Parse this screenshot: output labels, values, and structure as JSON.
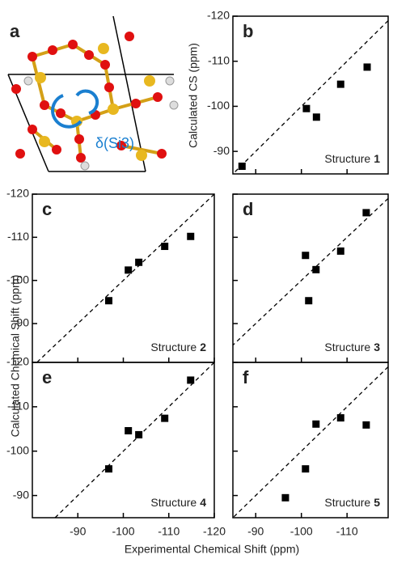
{
  "panel_a": {
    "label": "a",
    "annotation": "δ(Si3)"
  },
  "shared_labels": {
    "y": "Calculated Chemical Shift (ppm)",
    "x": "Experimental Chemical Shift (ppm)"
  },
  "chart_data": [
    {
      "type": "scatter",
      "label": "b",
      "ylabel": "Calculated CS (ppm)",
      "annotation": "Structure",
      "annotation_bold": "1",
      "x": [
        -87.0,
        -101.1,
        -103.3,
        -108.6,
        -114.4
      ],
      "y": [
        -86.7,
        -99.5,
        -97.6,
        -104.9,
        -108.7
      ],
      "color": "#000000",
      "marker": "square",
      "diagonal": true,
      "xlim": [
        -85,
        -119
      ],
      "ylim": [
        -85,
        -120
      ],
      "xticks": [
        -90,
        -100,
        -110
      ],
      "yticks": [
        -90,
        -100,
        -110,
        -120
      ],
      "xtick_labels": false,
      "ytick_labels": true
    },
    {
      "type": "scatter",
      "label": "c",
      "annotation": "Structure",
      "annotation_bold": "2",
      "x": [
        -96.8,
        -101.1,
        -103.4,
        -109.1,
        -114.8
      ],
      "y": [
        -95.3,
        -102.4,
        -104.2,
        -107.9,
        -110.2
      ],
      "color": "#000000",
      "marker": "square",
      "diagonal": true,
      "xlim": [
        -80,
        -120
      ],
      "ylim": [
        -81,
        -120
      ],
      "xticks": [
        -90,
        -100,
        -110,
        -120
      ],
      "yticks": [
        -90,
        -100,
        -110,
        -120
      ],
      "xtick_labels": false,
      "ytick_labels": true
    },
    {
      "type": "scatter",
      "label": "d",
      "annotation": "Structure",
      "annotation_bold": "3",
      "x": [
        -101.6,
        -100.9,
        -103.2,
        -108.6,
        -114.2
      ],
      "y": [
        -95.3,
        -105.8,
        -102.5,
        -106.8,
        -115.7
      ],
      "color": "#000000",
      "marker": "square",
      "diagonal": true,
      "xlim": [
        -85,
        -119
      ],
      "ylim": [
        -81,
        -120
      ],
      "xticks": [
        -90,
        -100,
        -110
      ],
      "yticks": [
        -90,
        -100,
        -110,
        -120
      ],
      "xtick_labels": false,
      "ytick_labels": false
    },
    {
      "type": "scatter",
      "label": "e",
      "annotation": "Structure",
      "annotation_bold": "4",
      "x": [
        -96.8,
        -101.1,
        -103.4,
        -109.1,
        -114.8
      ],
      "y": [
        -96.0,
        -104.6,
        -103.7,
        -107.4,
        -116.0
      ],
      "color": "#000000",
      "marker": "square",
      "diagonal": true,
      "xlim": [
        -80,
        -120
      ],
      "ylim": [
        -85,
        -120
      ],
      "xticks": [
        -90,
        -100,
        -110,
        -120
      ],
      "yticks": [
        -90,
        -100,
        -110,
        -120
      ],
      "xtick_labels": true,
      "ytick_labels": true
    },
    {
      "type": "scatter",
      "label": "f",
      "annotation": "Structure",
      "annotation_bold": "5",
      "x": [
        -96.5,
        -100.9,
        -103.2,
        -108.6,
        -114.2
      ],
      "y": [
        -89.5,
        -96.0,
        -106.1,
        -107.5,
        -105.9
      ],
      "color": "#000000",
      "marker": "square",
      "diagonal": true,
      "xlim": [
        -85,
        -119
      ],
      "ylim": [
        -85,
        -120
      ],
      "xticks": [
        -90,
        -100,
        -110
      ],
      "yticks": [
        -90,
        -100,
        -110,
        -120
      ],
      "xtick_labels": true,
      "ytick_labels": false
    }
  ]
}
